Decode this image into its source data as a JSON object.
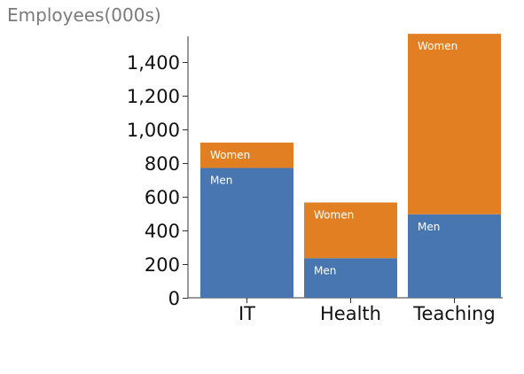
{
  "chart_data": {
    "type": "bar",
    "stacked": true,
    "title": "",
    "xlabel": "",
    "ylabel": "Employees(000s)",
    "categories": [
      "IT",
      "Health",
      "Teaching"
    ],
    "series": [
      {
        "name": "Men",
        "values": [
          770,
          235,
          495
        ],
        "color": "#4876b0"
      },
      {
        "name": "Women",
        "values": [
          150,
          330,
          1070
        ],
        "color": "#e37f23"
      }
    ],
    "ylim": [
      0,
      1550
    ],
    "yticks": [
      0,
      200,
      400,
      600,
      800,
      1000,
      1200,
      1400
    ],
    "ytick_labels": [
      "0",
      "200",
      "400",
      "600",
      "800",
      "1,000",
      "1,200",
      "1,400"
    ],
    "grid": false,
    "legend": "none"
  }
}
